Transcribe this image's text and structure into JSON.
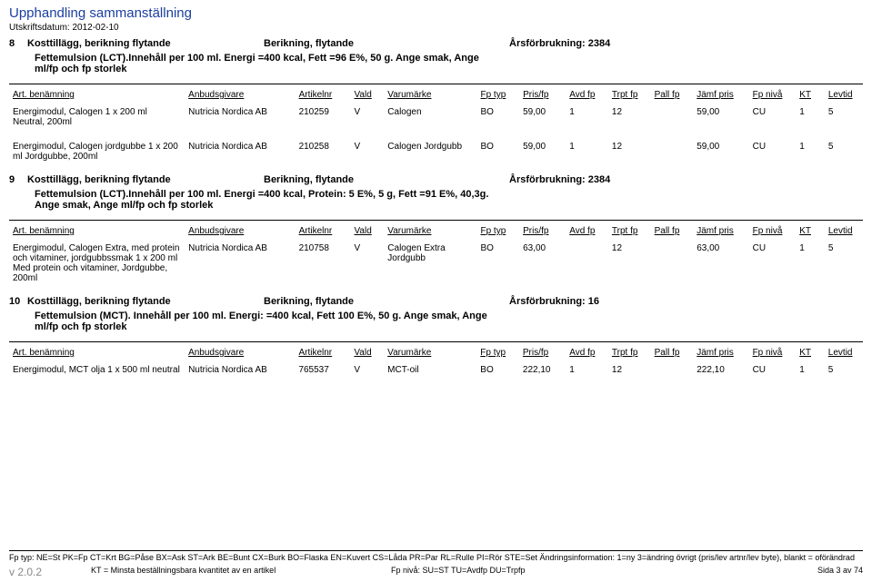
{
  "doc": {
    "title": "Upphandling sammanställning",
    "print_date": "Utskriftsdatum: 2012-02-10"
  },
  "columns": {
    "c1": "Art. benämning",
    "c2": "Anbudsgivare",
    "c3": "Artikelnr",
    "c4": "Vald",
    "c5": "Varumärke",
    "c6": "Fp typ",
    "c7": "Pris/fp",
    "c8": "Avd fp",
    "c9": "Trpt fp",
    "c10": "Pall fp",
    "c11": "Jämf pris",
    "c12": "Fp nivå",
    "c13": "KT",
    "c14": "Levtid"
  },
  "sections": [
    {
      "num": "8",
      "name": "Kosttillägg, berikning flytande",
      "mid": "Berikning, flytande",
      "right": "Årsförbrukning: 2384",
      "desc": "Fettemulsion (LCT).Innehåll per 100 ml. Energi =400 kcal, Fett =96 E%, 50 g. Ange smak, Ange ml/fp och fp storlek",
      "rows": [
        {
          "art": "Energimodul, Calogen 1 x 200 ml Neutral, 200ml",
          "anb": "Nutricia Nordica AB",
          "nr": "210259",
          "vald": "V",
          "varu": "Calogen",
          "fpt": "BO",
          "pris": "59,00",
          "avd": "1",
          "trpt": "12",
          "pall": "",
          "jamf": "59,00",
          "niva": "CU",
          "kt": "1",
          "lev": "5"
        },
        {
          "art": "Energimodul, Calogen jordgubbe 1 x 200 ml Jordgubbe, 200ml",
          "anb": "Nutricia Nordica AB",
          "nr": "210258",
          "vald": "V",
          "varu": "Calogen Jordgubb",
          "fpt": "BO",
          "pris": "59,00",
          "avd": "1",
          "trpt": "12",
          "pall": "",
          "jamf": "59,00",
          "niva": "CU",
          "kt": "1",
          "lev": "5"
        }
      ]
    },
    {
      "num": "9",
      "name": "Kosttillägg, berikning flytande",
      "mid": "Berikning, flytande",
      "right": "Årsförbrukning: 2384",
      "desc": "Fettemulsion (LCT).Innehåll per 100 ml. Energi =400 kcal, Protein: 5 E%, 5 g, Fett =91 E%, 40,3g. Ange smak, Ange ml/fp och fp storlek",
      "rows": [
        {
          "art": "Energimodul, Calogen Extra, med protein och vitaminer, jordgubbssmak 1 x 200 ml Med protein och vitaminer, Jordgubbe, 200ml",
          "anb": "Nutricia Nordica AB",
          "nr": "210758",
          "vald": "V",
          "varu": "Calogen Extra Jordgubb",
          "fpt": "BO",
          "pris": "63,00",
          "avd": "",
          "trpt": "12",
          "pall": "",
          "jamf": "63,00",
          "niva": "CU",
          "kt": "1",
          "lev": "5"
        }
      ]
    },
    {
      "num": "10",
      "name": "Kosttillägg, berikning flytande",
      "mid": "Berikning, flytande",
      "right": "Årsförbrukning: 16",
      "desc": "Fettemulsion (MCT). Innehåll per 100 ml. Energi: =400 kcal, Fett 100 E%, 50 g. Ange smak, Ange ml/fp och fp storlek",
      "rows": [
        {
          "art": "Energimodul, MCT olja 1 x 500 ml neutral",
          "anb": "Nutricia Nordica AB",
          "nr": "765537",
          "vald": "V",
          "varu": "MCT-oil",
          "fpt": "BO",
          "pris": "222,10",
          "avd": "1",
          "trpt": "12",
          "pall": "",
          "jamf": "222,10",
          "niva": "CU",
          "kt": "1",
          "lev": "5"
        }
      ]
    }
  ],
  "footer": {
    "line1": "Fp typ: NE=St PK=Fp CT=Krt BG=Påse BX=Ask ST=Ark BE=Bunt CX=Burk BO=Flaska EN=Kuvert CS=Låda PR=Par RL=Rulle PI=Rör STE=Set Ändringsinformation: 1=ny 3=ändring övrigt (pris/lev artnr/lev byte), blankt = oförändrad",
    "ver": "v 2.0.2",
    "kt": "KT = Minsta beställningsbara kvantitet av en artikel",
    "niva": "Fp nivå: SU=ST TU=Avdfp DU=Trpfp",
    "sida": "Sida 3 av 74"
  },
  "col_widths": [
    "200px",
    "120px",
    "55px",
    "30px",
    "100px",
    "40px",
    "45px",
    "40px",
    "40px",
    "40px",
    "55px",
    "45px",
    "25px",
    "35px"
  ]
}
